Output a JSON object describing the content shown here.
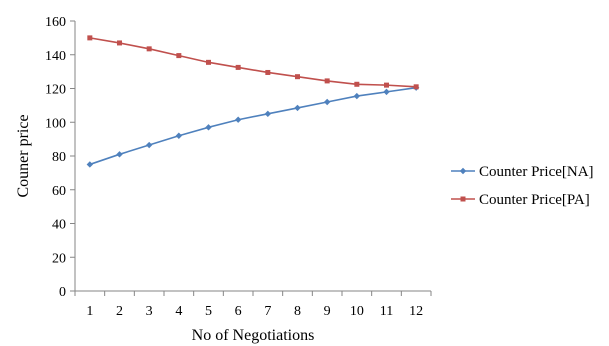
{
  "chart_data": {
    "type": "line",
    "title": "",
    "xlabel": "No of Negotiations",
    "ylabel": "Couner price",
    "x": [
      1,
      2,
      3,
      4,
      5,
      6,
      7,
      8,
      9,
      10,
      11,
      12
    ],
    "ylim": [
      0,
      160
    ],
    "yticks": [
      0,
      20,
      40,
      60,
      80,
      100,
      120,
      140,
      160
    ],
    "grid": false,
    "legend_position": "right",
    "series": [
      {
        "name": "Counter Price[NA]",
        "color": "#4f81bd",
        "marker": "diamond",
        "values": [
          75,
          81,
          86.5,
          92,
          97,
          101.5,
          105,
          108.5,
          112,
          115.5,
          118,
          120.5
        ]
      },
      {
        "name": "Counter Price[PA]",
        "color": "#c0504d",
        "marker": "square",
        "values": [
          150,
          147,
          143.5,
          139.5,
          135.5,
          132.5,
          129.5,
          127,
          124.5,
          122.5,
          122,
          121
        ]
      }
    ]
  }
}
